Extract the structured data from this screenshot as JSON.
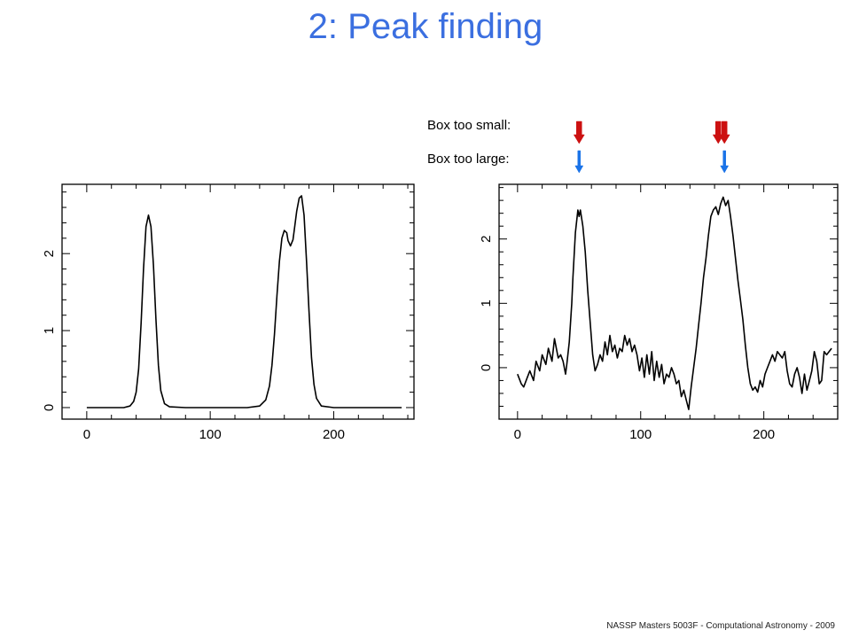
{
  "slide": {
    "title": "2: Peak finding",
    "footer": "NASSP Masters 5003F - Computational Astronomy - 2009"
  },
  "legend": {
    "small_label": "Box too small:",
    "large_label": "Box too large:",
    "small_color": "#cc1111",
    "large_color": "#1a73e8"
  },
  "colors": {
    "title": "#3b6fe0",
    "line": "#000000"
  },
  "chart_data": [
    {
      "type": "line",
      "title": "",
      "xlabel": "",
      "ylabel": "",
      "xlim": [
        -20,
        265
      ],
      "ylim": [
        -0.15,
        2.9
      ],
      "xticks": [
        0,
        100,
        200
      ],
      "yticks": [
        0,
        1,
        2
      ],
      "series": [
        {
          "x": [
            0,
            30,
            35,
            38,
            40,
            42,
            44,
            46,
            48,
            50,
            52,
            54,
            56,
            58,
            60,
            63,
            67,
            80,
            100,
            130,
            140,
            145,
            148,
            150,
            152,
            154,
            156,
            158,
            160,
            162,
            163,
            165,
            167,
            168,
            170,
            172,
            174,
            176,
            178,
            180,
            182,
            184,
            186,
            190,
            200,
            230,
            255
          ],
          "y": [
            0,
            0,
            0.02,
            0.08,
            0.2,
            0.5,
            1.1,
            1.8,
            2.35,
            2.5,
            2.35,
            1.85,
            1.15,
            0.55,
            0.22,
            0.05,
            0.01,
            0,
            0,
            0,
            0.02,
            0.1,
            0.28,
            0.55,
            0.95,
            1.45,
            1.9,
            2.2,
            2.3,
            2.27,
            2.17,
            2.1,
            2.18,
            2.3,
            2.55,
            2.72,
            2.75,
            2.5,
            1.9,
            1.25,
            0.65,
            0.3,
            0.12,
            0.02,
            0,
            0,
            0
          ]
        }
      ]
    },
    {
      "type": "line",
      "title": "",
      "xlabel": "",
      "ylabel": "",
      "xlim": [
        -15,
        260
      ],
      "ylim": [
        -0.8,
        2.85
      ],
      "xticks": [
        0,
        100,
        200
      ],
      "yticks": [
        0,
        1,
        2
      ],
      "markers": {
        "box_too_small": [
          50,
          163,
          168
        ],
        "box_too_large": [
          50,
          168
        ]
      },
      "series": [
        {
          "x": [
            0,
            3,
            5,
            8,
            10,
            13,
            15,
            18,
            20,
            23,
            25,
            28,
            30,
            33,
            35,
            37,
            39,
            40,
            42,
            44,
            45,
            47,
            49,
            50,
            51,
            53,
            55,
            57,
            59,
            61,
            63,
            65,
            67,
            69,
            71,
            73,
            75,
            77,
            79,
            81,
            83,
            85,
            87,
            89,
            91,
            93,
            95,
            97,
            99,
            101,
            103,
            105,
            107,
            109,
            111,
            113,
            115,
            117,
            119,
            121,
            123,
            125,
            127,
            129,
            131,
            133,
            135,
            137,
            139,
            141,
            143,
            145,
            147,
            149,
            151,
            153,
            155,
            157,
            159,
            161,
            163,
            165,
            167,
            169,
            171,
            173,
            175,
            177,
            179,
            181,
            183,
            185,
            187,
            189,
            191,
            193,
            195,
            197,
            199,
            201,
            203,
            205,
            207,
            209,
            211,
            213,
            215,
            217,
            219,
            221,
            223,
            225,
            227,
            229,
            231,
            233,
            235,
            237,
            239,
            241,
            243,
            245,
            247,
            249,
            251,
            253,
            255
          ],
          "y": [
            -0.1,
            -0.25,
            -0.3,
            -0.15,
            -0.05,
            -0.2,
            0.1,
            -0.05,
            0.2,
            0.05,
            0.3,
            0.1,
            0.45,
            0.15,
            0.2,
            0.1,
            -0.1,
            0.05,
            0.4,
            1.0,
            1.4,
            2.1,
            2.45,
            2.35,
            2.45,
            2.2,
            1.8,
            1.2,
            0.7,
            0.2,
            -0.05,
            0.05,
            0.2,
            0.1,
            0.4,
            0.2,
            0.5,
            0.25,
            0.35,
            0.15,
            0.3,
            0.25,
            0.5,
            0.35,
            0.45,
            0.25,
            0.35,
            0.2,
            -0.05,
            0.15,
            -0.15,
            0.2,
            -0.1,
            0.25,
            -0.2,
            0.1,
            -0.15,
            0.05,
            -0.25,
            -0.1,
            -0.15,
            0.0,
            -0.1,
            -0.25,
            -0.2,
            -0.45,
            -0.35,
            -0.5,
            -0.65,
            -0.3,
            0.0,
            0.3,
            0.65,
            1.0,
            1.4,
            1.7,
            2.05,
            2.35,
            2.45,
            2.5,
            2.38,
            2.55,
            2.65,
            2.52,
            2.6,
            2.35,
            2.05,
            1.7,
            1.35,
            1.05,
            0.75,
            0.35,
            0.0,
            -0.25,
            -0.35,
            -0.3,
            -0.38,
            -0.2,
            -0.3,
            -0.1,
            0.0,
            0.1,
            0.2,
            0.1,
            0.25,
            0.2,
            0.15,
            0.25,
            -0.05,
            -0.25,
            -0.3,
            -0.1,
            0.0,
            -0.15,
            -0.4,
            -0.1,
            -0.35,
            -0.2,
            -0.05,
            0.25,
            0.1,
            -0.25,
            -0.2,
            0.25,
            0.2,
            0.25,
            0.3
          ]
        }
      ]
    }
  ]
}
